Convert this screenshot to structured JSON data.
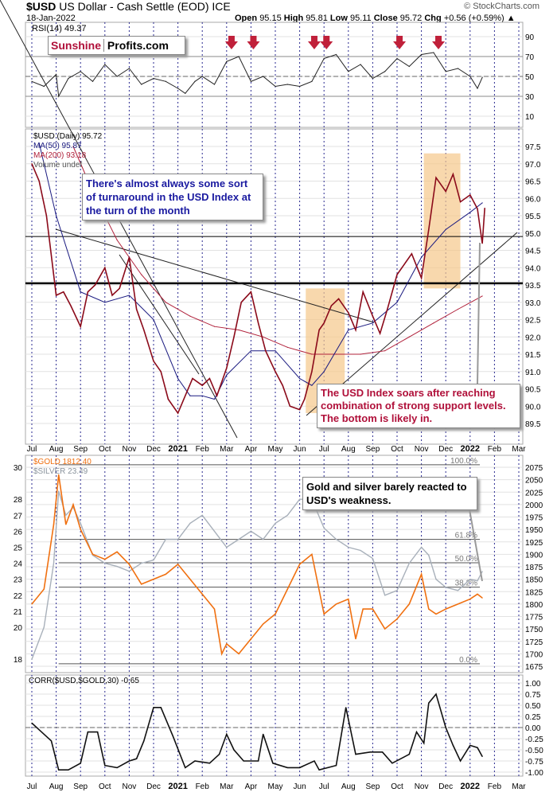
{
  "header": {
    "symbol": "$USD",
    "name": "US Dollar - Cash Settle (EOD)",
    "exchange": "ICE",
    "date": "18-Jan-2022",
    "open_label": "Open",
    "open": "95.15",
    "high_label": "High",
    "high": "95.81",
    "low_label": "Low",
    "low": "95.11",
    "close_label": "Close",
    "close": "95.72",
    "chg_label": "Chg",
    "chg": "+0.56 (+0.59%)",
    "credit": "© StockCharts.com"
  },
  "logo": {
    "part1": "Sunshine",
    "part2": "Profits.com"
  },
  "notes": {
    "usd_turnaround": "There's almost always some sort of turnaround in the USD Index at the turn of the month",
    "usd_bottom": "The USD Index soars after reaching combination of strong support levels. The bottom is likely in.",
    "gold_silver": "Gold and silver barely reacted to USD's weakness."
  },
  "colors": {
    "usd": "#8b0a1a",
    "ma50": "#1a1a80",
    "ma200": "#b0203a",
    "gold": "#f07010",
    "silver": "#a8b0ba",
    "box": "#f5c88a",
    "arrow": "#c0203a",
    "note_blue": "#1a1aa0",
    "note_red": "#b0103a"
  },
  "chart_data": [
    {
      "type": "line",
      "title": "RSI(14) 49.37",
      "ylim": [
        0,
        100
      ],
      "yticks": [
        10,
        30,
        50,
        70,
        90
      ],
      "x_unit": "months since Jul 2020",
      "series": [
        {
          "name": "RSI(14)",
          "x": [
            0,
            0.5,
            1,
            1.1,
            1.5,
            2,
            2.5,
            3,
            3.5,
            4,
            4.5,
            5,
            5.5,
            6,
            6.3,
            6.7,
            7,
            7.5,
            8,
            8.5,
            9,
            9.5,
            10,
            10.5,
            11,
            11.5,
            12,
            12.5,
            13,
            13.5,
            14,
            14.5,
            15,
            15.5,
            16,
            16.5,
            17,
            17.5,
            18,
            18.3,
            18.5
          ],
          "y": [
            45,
            40,
            52,
            30,
            48,
            55,
            45,
            62,
            50,
            58,
            42,
            48,
            45,
            38,
            33,
            45,
            50,
            42,
            65,
            70,
            45,
            50,
            40,
            42,
            40,
            45,
            68,
            72,
            55,
            62,
            48,
            55,
            68,
            60,
            72,
            74,
            55,
            58,
            50,
            38,
            49
          ]
        }
      ],
      "arrows_at_x": [
        8.2,
        9.1,
        11.6,
        12.1,
        15.1,
        16.7
      ]
    },
    {
      "type": "line",
      "title": "$USD (Daily) 95.72",
      "legend": [
        "MA(50) 95.87",
        "MA(200) 93.18",
        "Volume undef"
      ],
      "ylim": [
        89,
        97.8
      ],
      "yticks": [
        89.5,
        90.0,
        90.5,
        91.0,
        91.5,
        92.0,
        92.5,
        93.0,
        93.5,
        94.0,
        94.5,
        95.0,
        95.5,
        96.0,
        96.5,
        97.0,
        97.5
      ],
      "series": [
        {
          "name": "$USD",
          "x": [
            0,
            0.3,
            0.6,
            1,
            1.3,
            1.6,
            2,
            2.3,
            2.6,
            3,
            3.3,
            3.6,
            4,
            4.3,
            4.6,
            5,
            5.3,
            5.6,
            6,
            6.3,
            6.6,
            7,
            7.3,
            7.6,
            8,
            8.3,
            8.6,
            9,
            9.3,
            9.6,
            10,
            10.3,
            10.6,
            11,
            11.2,
            11.5,
            11.8,
            12,
            12.3,
            12.6,
            13,
            13.3,
            13.6,
            14,
            14.3,
            14.6,
            15,
            15.3,
            15.6,
            16,
            16.3,
            16.6,
            17,
            17.3,
            17.6,
            18,
            18.3,
            18.5,
            18.6
          ],
          "y": [
            97.0,
            96.5,
            95.5,
            93.2,
            93.3,
            92.9,
            92.3,
            93.3,
            93.5,
            94.0,
            93.2,
            93.4,
            94.3,
            92.8,
            92.2,
            91.3,
            91.0,
            90.2,
            89.8,
            90.3,
            90.8,
            90.6,
            90.8,
            90.3,
            91.1,
            92.0,
            93.0,
            93.3,
            92.4,
            91.6,
            91.0,
            90.6,
            90.0,
            89.9,
            90.2,
            91.0,
            92.2,
            92.4,
            92.9,
            93.1,
            92.7,
            92.2,
            93.3,
            92.6,
            92.1,
            92.8,
            93.8,
            94.1,
            94.4,
            93.7,
            95.1,
            96.6,
            96.2,
            96.7,
            95.9,
            96.1,
            95.7,
            94.7,
            95.72
          ]
        },
        {
          "name": "MA(50) 95.87",
          "x": [
            0.3,
            1,
            2,
            3,
            4,
            5,
            6,
            6.5,
            7,
            7.5,
            8,
            9,
            10,
            11,
            11.5,
            12,
            13,
            14,
            15,
            16,
            17,
            18,
            18.5
          ],
          "y": [
            97.6,
            95.5,
            93.3,
            93.0,
            93.2,
            92.5,
            90.8,
            90.3,
            90.3,
            90.2,
            90.9,
            91.6,
            91.6,
            90.8,
            90.6,
            91.0,
            92.2,
            92.4,
            93.0,
            94.3,
            95.1,
            95.6,
            95.87
          ]
        },
        {
          "name": "MA(200) 93.18",
          "x": [
            1.7,
            2.5,
            3.5,
            4.5,
            5.5,
            6.5,
            7.5,
            8.5,
            9.5,
            10.5,
            11.5,
            12.5,
            13.5,
            14.5,
            15.5,
            16.5,
            17.5,
            18.5
          ],
          "y": [
            97.5,
            96.2,
            94.8,
            93.8,
            93.0,
            92.6,
            92.3,
            92.2,
            92.0,
            91.7,
            91.5,
            91.5,
            91.5,
            91.6,
            92.0,
            92.4,
            92.8,
            93.18
          ]
        }
      ],
      "support_levels": [
        94.9,
        93.55
      ],
      "highlight_ranges": [
        {
          "x": [
            11.25,
            12.85
          ],
          "y": [
            89.8,
            93.4
          ]
        },
        {
          "x": [
            16.1,
            17.6
          ],
          "y": [
            93.4,
            97.3
          ]
        }
      ]
    },
    {
      "type": "line",
      "title": "$GOLD 1812.40 / $SILVER 23.49",
      "legend": [
        "$GOLD 1812.40",
        "$SILVER 23.49"
      ],
      "ylim_gold": [
        1665,
        2085
      ],
      "ylim_silver": [
        17.5,
        30.5
      ],
      "yticks_gold": [
        1675,
        1700,
        1725,
        1750,
        1775,
        1800,
        1825,
        1850,
        1875,
        1900,
        1925,
        1950,
        1975,
        2000,
        2025,
        2050,
        2075
      ],
      "yticks_silver": [
        18,
        20,
        21,
        22,
        23,
        24,
        25,
        26,
        27,
        28,
        30
      ],
      "fib_levels": [
        {
          "label": "100.0%",
          "value": 2080
        },
        {
          "label": "61.8%",
          "value": 1930
        },
        {
          "label": "50.0%",
          "value": 1883
        },
        {
          "label": "38.2%",
          "value": 1834
        },
        {
          "label": "0.0%",
          "value": 1680
        }
      ],
      "series": [
        {
          "name": "$GOLD",
          "x": [
            0,
            0.5,
            0.9,
            1.1,
            1.4,
            1.7,
            2,
            2.5,
            3,
            3.5,
            4,
            4.5,
            5,
            5.5,
            6,
            6.5,
            7,
            7.5,
            7.8,
            8,
            8.5,
            9,
            9.5,
            10,
            10.5,
            11,
            11.5,
            12,
            12.5,
            13,
            13.3,
            13.6,
            14,
            14.5,
            15,
            15.5,
            16,
            16.3,
            16.6,
            17,
            17.5,
            18,
            18.3,
            18.5
          ],
          "y": [
            1800,
            1830,
            1960,
            2060,
            1960,
            2000,
            1950,
            1900,
            1890,
            1905,
            1880,
            1840,
            1850,
            1860,
            1880,
            1850,
            1820,
            1790,
            1700,
            1720,
            1700,
            1730,
            1760,
            1780,
            1830,
            1880,
            1900,
            1780,
            1800,
            1810,
            1730,
            1790,
            1790,
            1750,
            1770,
            1800,
            1860,
            1790,
            1780,
            1790,
            1800,
            1810,
            1820,
            1812.4
          ]
        },
        {
          "name": "$SILVER",
          "x": [
            0,
            0.5,
            0.9,
            1.1,
            1.4,
            1.7,
            2,
            2.5,
            3,
            3.5,
            4,
            4.5,
            5,
            5.5,
            6,
            6.5,
            7,
            7.5,
            8,
            8.5,
            9,
            9.5,
            10,
            10.5,
            11,
            11.5,
            12,
            12.5,
            13,
            13.5,
            14,
            14.5,
            15,
            15.5,
            16,
            16.3,
            16.6,
            17,
            17.5,
            18,
            18.3,
            18.5
          ],
          "y": [
            18,
            20,
            24,
            28.5,
            27,
            27.5,
            26.5,
            24.5,
            24,
            23.8,
            23.5,
            24,
            24.2,
            25.5,
            25.5,
            26.5,
            27,
            26,
            25,
            25.5,
            26,
            25.5,
            26.5,
            27,
            28,
            28,
            26.2,
            25.5,
            25,
            24.8,
            24.3,
            22,
            22.3,
            24,
            25,
            24.5,
            23,
            22.5,
            22.3,
            23,
            22.9,
            23.49
          ]
        }
      ]
    },
    {
      "type": "line",
      "title": "CORR($USD,$GOLD,30) -0.65",
      "ylim": [
        -1.05,
        1.05
      ],
      "yticks": [
        1.0,
        0.75,
        0.5,
        0.25,
        0.0,
        -0.25,
        -0.5,
        -0.75,
        -1.0
      ],
      "series": [
        {
          "name": "CORR",
          "x": [
            0,
            0.3,
            0.8,
            1.1,
            1.5,
            2,
            2.3,
            2.7,
            3,
            3.5,
            4,
            4.3,
            4.6,
            5,
            5.3,
            5.8,
            6.3,
            6.7,
            7.3,
            7.7,
            8,
            8.3,
            8.7,
            9.3,
            9.5,
            9.9,
            10.5,
            11,
            11.6,
            11.8,
            12.5,
            12.9,
            13.3,
            13.9,
            14.4,
            14.8,
            15.5,
            15.8,
            16.1,
            16.3,
            16.6,
            17,
            17.3,
            17.6,
            18,
            18.3,
            18.5
          ],
          "y": [
            0.1,
            -0.05,
            -0.3,
            -0.95,
            -0.95,
            -0.8,
            -0.1,
            -0.1,
            -0.85,
            -0.9,
            -0.75,
            -0.7,
            -0.3,
            0.45,
            0.45,
            -0.2,
            -0.9,
            -0.75,
            -0.8,
            -0.6,
            -0.15,
            -0.5,
            -0.75,
            -0.75,
            -0.15,
            -0.8,
            -0.9,
            -0.9,
            -0.75,
            -0.95,
            -0.85,
            0.45,
            -0.6,
            -0.55,
            -0.55,
            -0.8,
            -0.6,
            -0.1,
            -0.35,
            0.55,
            0.75,
            0.0,
            -0.4,
            -0.75,
            -0.4,
            -0.45,
            -0.65
          ]
        }
      ]
    }
  ],
  "x_axis": {
    "labels": [
      "Jul",
      "Aug",
      "Sep",
      "Oct",
      "Nov",
      "Dec",
      "2021",
      "Feb",
      "Mar",
      "Apr",
      "May",
      "Jun",
      "Jul",
      "Aug",
      "Sep",
      "Oct",
      "Nov",
      "Dec",
      "2022",
      "Feb",
      "Mar"
    ]
  }
}
